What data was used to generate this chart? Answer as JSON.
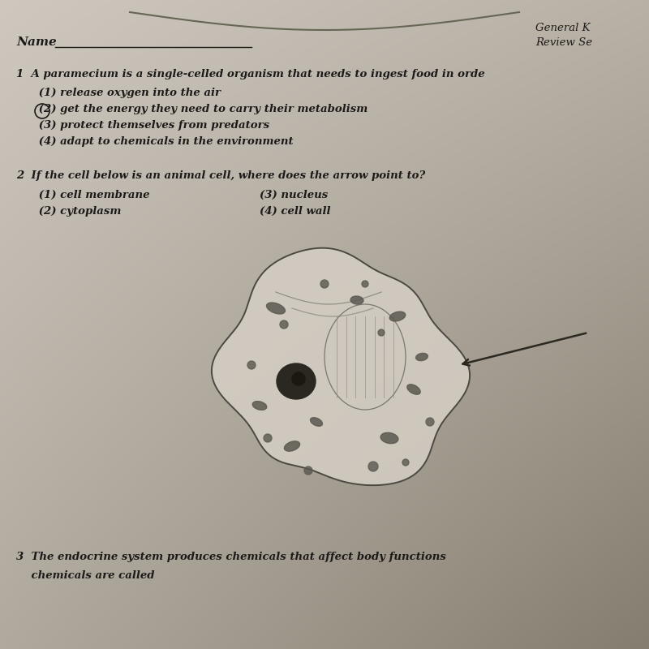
{
  "bg_color_tl": "#cec8be",
  "bg_color_tr": "#b8b0a4",
  "bg_color_br": "#888070",
  "title_right1": "General K",
  "title_right2": "Review Se",
  "name_label": "Name",
  "q1_stem": "1  A paramecium is a single-celled organism that needs to ingest food in orde",
  "q1_opt1": "      (1) release oxygen into the air",
  "q1_opt2": "      (2) get the energy they need to carry their metabolism",
  "q1_opt3": "      (3) protect themselves from predators",
  "q1_opt4": "      (4) adapt to chemicals in the environment",
  "q2_stem": "2  If the cell below is an animal cell, where does the arrow point to?",
  "q2_opt1": "      (1) cell membrane",
  "q2_opt2": "      (2) cytoplasm",
  "q2_opt3": "(3) nucleus",
  "q2_opt4": "(4) cell wall",
  "q3_stem": "3  The endocrine system produces chemicals that affect body functions",
  "q3_sub": "    chemicals are called",
  "font_color": "#1c1a18",
  "line_color": "#444444"
}
